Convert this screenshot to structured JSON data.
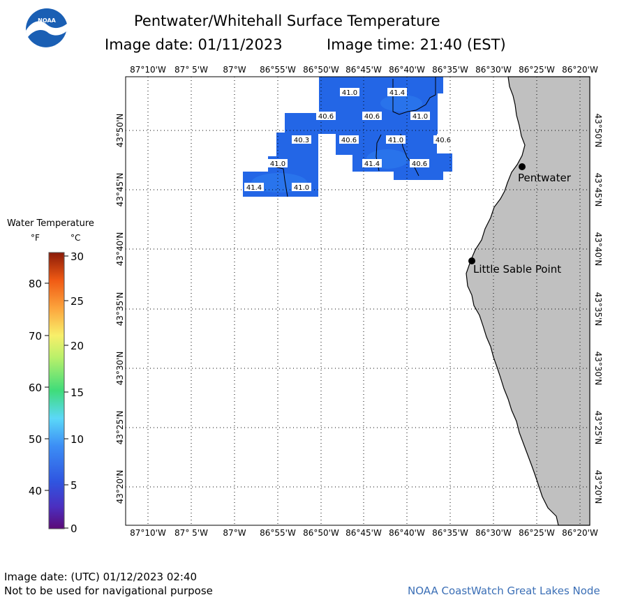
{
  "logo": {
    "text": "NOAA"
  },
  "header": {
    "title": "Pentwater/Whitehall Surface Temperature",
    "image_date": "Image date: 01/11/2023",
    "image_time": "Image time: 21:40 (EST)"
  },
  "axes": {
    "lon_labels": [
      "87°10'W",
      "87° 5'W",
      "87°W",
      "86°55'W",
      "86°50'W",
      "86°45'W",
      "86°40'W",
      "86°35'W",
      "86°30'W",
      "86°25'W",
      "86°20'W"
    ],
    "lat_labels": [
      "43°50'N",
      "43°45'N",
      "43°40'N",
      "43°35'N",
      "43°30'N",
      "43°25'N",
      "43°20'N"
    ]
  },
  "legend": {
    "title": "Water Temperature",
    "unit_f": "°F",
    "unit_c": "°C",
    "f_ticks": [
      "80",
      "70",
      "60",
      "50",
      "40"
    ],
    "c_ticks": [
      "30",
      "25",
      "20",
      "15",
      "10",
      "5",
      "0"
    ]
  },
  "places": {
    "pentwater": "Pentwater",
    "little_sable_point": "Little Sable Point"
  },
  "temperature_labels": [
    "41.0",
    "41.4",
    "40.6",
    "40.6",
    "41.0",
    "40.3",
    "40.6",
    "41.0",
    "40.6",
    "41.0",
    "41.4",
    "40.6",
    "41.4",
    "41.0"
  ],
  "colors": {
    "water": "#2366E6",
    "water_light": "#2F7FF0",
    "land": "#C0C0C0"
  },
  "footer": {
    "utc_date": "Image date: (UTC) 01/12/2023  02:40",
    "disclaimer": "Not to be used for navigational purpose",
    "source": "NOAA CoastWatch Great Lakes Node"
  }
}
